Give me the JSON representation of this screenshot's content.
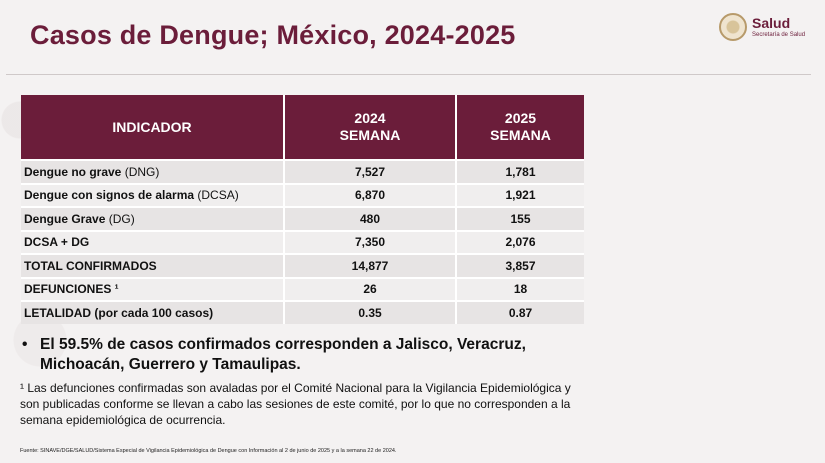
{
  "header": {
    "title": "Casos de Dengue; México, 2024-2025",
    "logo_name": "Salud",
    "logo_sub": "Secretaría de Salud"
  },
  "table": {
    "headers": {
      "indicator": "INDICADOR",
      "col2024_year": "2024",
      "col2024_week": "SEMANA",
      "col2025_year": "2025",
      "col2025_week": "SEMANA"
    },
    "rows": [
      {
        "label": "Dengue no grave",
        "abbr": " (DNG)",
        "v2024": "7,527",
        "v2025": "1,781"
      },
      {
        "label": "Dengue con signos de alarma",
        "abbr": " (DCSA)",
        "v2024": "6,870",
        "v2025": "1,921"
      },
      {
        "label": "Dengue Grave",
        "abbr": " (DG)",
        "v2024": "480",
        "v2025": "155"
      },
      {
        "label": "DCSA + DG",
        "abbr": "",
        "v2024": "7,350",
        "v2025": "2,076"
      },
      {
        "label": "TOTAL CONFIRMADOS",
        "abbr": "",
        "v2024": "14,877",
        "v2025": "3,857"
      },
      {
        "label": "DEFUNCIONES",
        "abbr": " ¹",
        "v2024": "26",
        "v2025": "18"
      },
      {
        "label": "LETALIDAD (por cada 100 casos)",
        "abbr": "",
        "v2024": "0.35",
        "v2025": "0.87"
      }
    ]
  },
  "bullet": {
    "symbol": "•",
    "text": "El 59.5% de casos confirmados corresponden a Jalisco, Veracruz, Michoacán, Guerrero y Tamaulipas."
  },
  "footnote": "¹ Las defunciones confirmadas son avaladas por el Comité Nacional para la Vigilancia Epidemiológica y son publicadas conforme se llevan a cabo las sesiones de este comité, por lo que no corresponden a la semana epidemiológica de ocurrencia.",
  "source": "Fuente: SINAVE/DGE/SALUD/Sistema Especial de Vigilancia Epidemiológica de Dengue con Información al 2 de junio de 2025 y a la semana 22 de 2024.",
  "colors": {
    "brand": "#6b1d3a",
    "row_light": "#f0eeee",
    "row_dark": "#e7e4e4"
  }
}
